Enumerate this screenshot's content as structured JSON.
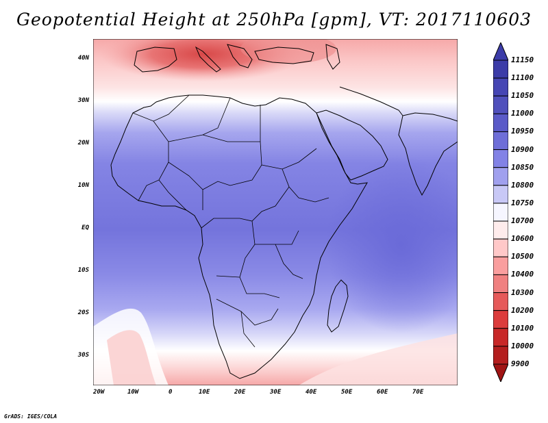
{
  "title": "Geopotential Height at 250hPa [gpm], VT: 2017110603",
  "credit": "GrADS: IGES/COLA",
  "map": {
    "region": "Africa",
    "lat_labels": [
      "40N",
      "30N",
      "20N",
      "10N",
      "EQ",
      "10S",
      "20S",
      "30S"
    ],
    "lon_labels": [
      "20W",
      "10W",
      "0",
      "10E",
      "20E",
      "30E",
      "40E",
      "50E",
      "60E",
      "70E"
    ],
    "lat_range": [
      -37,
      44
    ],
    "lon_range": [
      -22,
      80
    ]
  },
  "colorbar": {
    "labels": [
      "11150",
      "11100",
      "11050",
      "11000",
      "10950",
      "10900",
      "10850",
      "10800",
      "10750",
      "10700",
      "10600",
      "10500",
      "10400",
      "10300",
      "10200",
      "10100",
      "10000",
      "9900"
    ],
    "colors": [
      "#3c3ca8",
      "#3c3ca8",
      "#4646b4",
      "#5050bc",
      "#5a5ac8",
      "#6e6ed8",
      "#8282e6",
      "#a0a0ee",
      "#c8c8f6",
      "#f6f6ff",
      "#ffecec",
      "#ffc8c8",
      "#fa9e9e",
      "#f08080",
      "#e65a5a",
      "#dc3c3c",
      "#c82828",
      "#b41e1e",
      "#a01414"
    ]
  }
}
